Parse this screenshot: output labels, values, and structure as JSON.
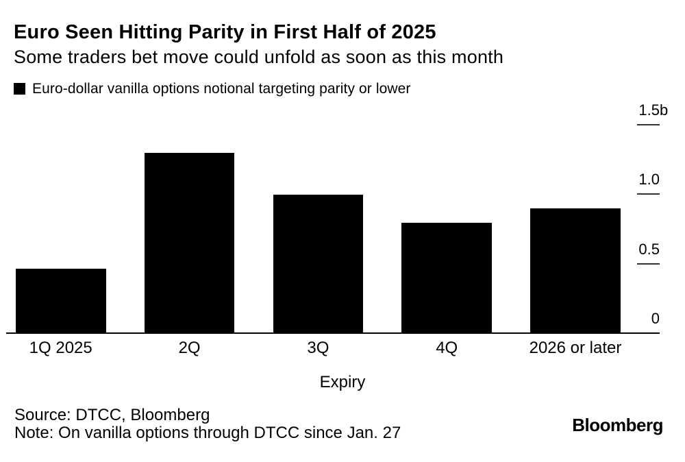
{
  "meta": {
    "background_color": "#ffffff",
    "text_color": "#000000",
    "accent_color": "#000000"
  },
  "header": {
    "title": "Euro Seen Hitting Parity in First Half of 2025",
    "subtitle": "Some traders bet move could unfold as soon as this month"
  },
  "legend": {
    "swatch_color": "#000000",
    "label": "Euro-dollar vanilla options notional targeting parity or lower"
  },
  "chart_data": {
    "type": "bar",
    "title": "Euro Seen Hitting Parity in First Half of 2025",
    "subtitle": "Some traders bet move could unfold as soon as this month",
    "series_name": "Euro-dollar vanilla options notional targeting parity or lower",
    "categories": [
      "1Q 2025",
      "2Q",
      "3Q",
      "4Q",
      "2026 or later"
    ],
    "values": [
      0.47,
      1.3,
      1.0,
      0.8,
      0.9
    ],
    "unit": "billions",
    "xlabel": "Expiry",
    "ylabel": "",
    "ylim": [
      0,
      1.5
    ],
    "y_ticks": [
      {
        "value": 1.5,
        "label": "1.5",
        "suffix": "b"
      },
      {
        "value": 1.0,
        "label": "1.0",
        "suffix": ""
      },
      {
        "value": 0.5,
        "label": "0.5",
        "suffix": ""
      },
      {
        "value": 0,
        "label": "0",
        "suffix": ""
      }
    ],
    "bar_color": "#000000",
    "grid": false,
    "legend_position": "top-left",
    "y_axis_side": "right"
  },
  "footer": {
    "source": "Source: DTCC, Bloomberg",
    "note": "Note: On vanilla options through DTCC since Jan. 27",
    "brand": "Bloomberg"
  }
}
